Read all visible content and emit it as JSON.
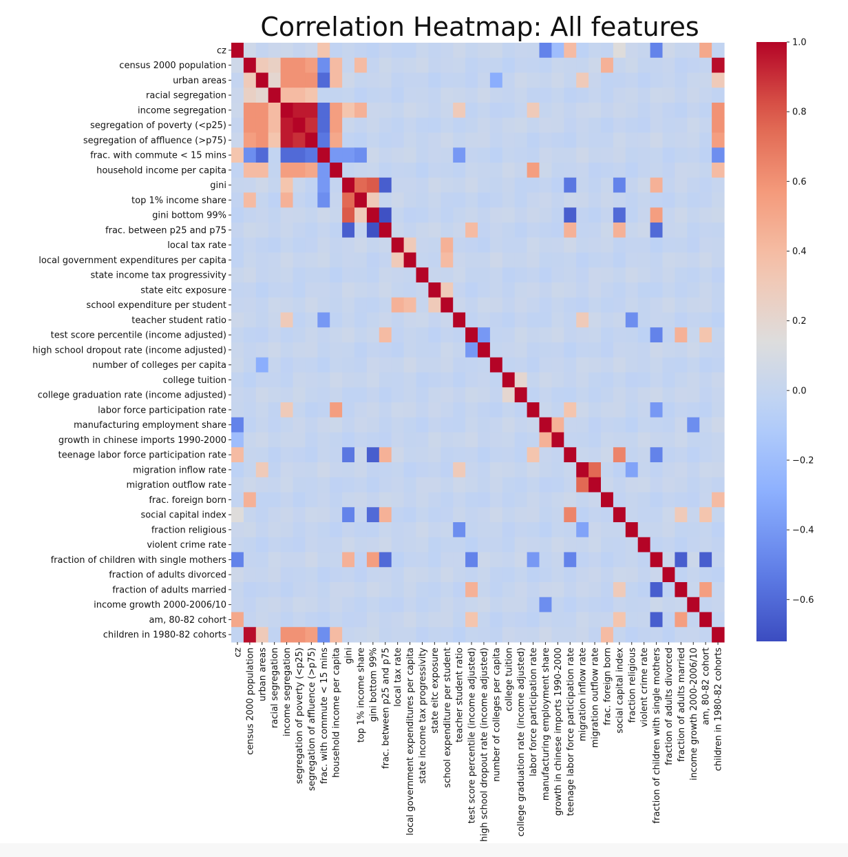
{
  "chart_data": {
    "type": "heatmap",
    "title": "Correlation Heatmap: All features",
    "labels": [
      "cz",
      "census 2000 population",
      "urban areas",
      "racial segregation",
      "income segregation",
      "segregation of poverty (<p25)",
      "segregation of affluence (>p75)",
      "frac. with commute < 15 mins",
      "household income per capita",
      "gini",
      "top 1% income share",
      "gini bottom 99%",
      "frac. between p25 and p75",
      "local tax rate",
      "local government expenditures per capita",
      "state income tax progressivity",
      "state eitc exposure",
      "school expenditure per student",
      "teacher student ratio",
      "test score percentile (income adjusted)",
      "high school dropout rate (income adjusted)",
      "number of colleges per capita",
      "college tuition",
      "college graduation rate (income adjusted)",
      "labor force participation rate",
      "manufacturing employment share",
      "growth in chinese imports 1990-2000",
      "teenage labor force participation rate",
      "migration inflow rate",
      "migration outflow rate",
      "frac. foreign born",
      "social capital index",
      "fraction religious",
      "violent crime rate",
      "fraction of children with single mothers",
      "fraction of adults divorced",
      "fraction of adults married",
      "income growth 2000-2006/10",
      "am, 80-82 cohort",
      "children in 1980-82 cohorts"
    ],
    "colorbar": {
      "min": -0.72,
      "max": 1.0,
      "ticks": [
        1.0,
        0.8,
        0.6,
        0.4,
        0.2,
        0.0,
        -0.2,
        -0.4,
        -0.6
      ],
      "tick_labels": [
        "1.0",
        "0.8",
        "0.6",
        "0.4",
        "0.2",
        "0.0",
        "−0.2",
        "−0.4",
        "−0.6"
      ],
      "colormap": "coolwarm"
    },
    "correlations": [
      [
        "cz",
        "census 2000 population",
        0.05
      ],
      [
        "cz",
        "frac. with commute < 15 mins",
        0.35
      ],
      [
        "cz",
        "manufacturing employment share",
        -0.5
      ],
      [
        "cz",
        "growth in chinese imports 1990-2000",
        -0.2
      ],
      [
        "cz",
        "teenage labor force participation rate",
        0.4
      ],
      [
        "cz",
        "fraction of children with single mothers",
        -0.5
      ],
      [
        "cz",
        "am, 80-82 cohort",
        0.5
      ],
      [
        "cz",
        "social capital index",
        0.15
      ],
      [
        "census 2000 population",
        "urban areas",
        0.3
      ],
      [
        "census 2000 population",
        "racial segregation",
        0.25
      ],
      [
        "census 2000 population",
        "income segregation",
        0.6
      ],
      [
        "census 2000 population",
        "segregation of poverty (<p25)",
        0.6
      ],
      [
        "census 2000 population",
        "segregation of affluence (>p75)",
        0.55
      ],
      [
        "census 2000 population",
        "frac. with commute < 15 mins",
        -0.45
      ],
      [
        "census 2000 population",
        "household income per capita",
        0.4
      ],
      [
        "census 2000 population",
        "top 1% income share",
        0.4
      ],
      [
        "census 2000 population",
        "frac. foreign born",
        0.45
      ],
      [
        "census 2000 population",
        "children in 1980-82 cohorts",
        0.98
      ],
      [
        "urban areas",
        "racial segregation",
        0.2
      ],
      [
        "urban areas",
        "income segregation",
        0.6
      ],
      [
        "urban areas",
        "segregation of poverty (<p25)",
        0.6
      ],
      [
        "urban areas",
        "segregation of affluence (>p75)",
        0.6
      ],
      [
        "urban areas",
        "frac. with commute < 15 mins",
        -0.6
      ],
      [
        "urban areas",
        "household income per capita",
        0.4
      ],
      [
        "urban areas",
        "number of colleges per capita",
        -0.3
      ],
      [
        "urban areas",
        "migration inflow rate",
        0.3
      ],
      [
        "urban areas",
        "children in 1980-82 cohorts",
        0.3
      ],
      [
        "racial segregation",
        "income segregation",
        0.4
      ],
      [
        "racial segregation",
        "segregation of poverty (<p25)",
        0.4
      ],
      [
        "racial segregation",
        "segregation of affluence (>p75)",
        0.35
      ],
      [
        "income segregation",
        "segregation of poverty (<p25)",
        0.95
      ],
      [
        "income segregation",
        "segregation of affluence (>p75)",
        0.95
      ],
      [
        "income segregation",
        "frac. with commute < 15 mins",
        -0.6
      ],
      [
        "income segregation",
        "household income per capita",
        0.55
      ],
      [
        "income segregation",
        "gini",
        0.35
      ],
      [
        "income segregation",
        "top 1% income share",
        0.45
      ],
      [
        "income segregation",
        "teacher student ratio",
        0.3
      ],
      [
        "income segregation",
        "labor force participation rate",
        0.3
      ],
      [
        "income segregation",
        "children in 1980-82 cohorts",
        0.6
      ],
      [
        "segregation of poverty (<p25)",
        "segregation of affluence (>p75)",
        0.9
      ],
      [
        "segregation of poverty (<p25)",
        "frac. with commute < 15 mins",
        -0.6
      ],
      [
        "segregation of poverty (<p25)",
        "household income per capita",
        0.55
      ],
      [
        "segregation of poverty (<p25)",
        "children in 1980-82 cohorts",
        0.6
      ],
      [
        "segregation of affluence (>p75)",
        "frac. with commute < 15 mins",
        -0.55
      ],
      [
        "segregation of affluence (>p75)",
        "household income per capita",
        0.5
      ],
      [
        "segregation of affluence (>p75)",
        "children in 1980-82 cohorts",
        0.55
      ],
      [
        "frac. with commute < 15 mins",
        "household income per capita",
        -0.4
      ],
      [
        "frac. with commute < 15 mins",
        "gini",
        -0.4
      ],
      [
        "frac. with commute < 15 mins",
        "top 1% income share",
        -0.45
      ],
      [
        "frac. with commute < 15 mins",
        "teacher student ratio",
        -0.4
      ],
      [
        "frac. with commute < 15 mins",
        "children in 1980-82 cohorts",
        -0.45
      ],
      [
        "household income per capita",
        "labor force participation rate",
        0.55
      ],
      [
        "household income per capita",
        "children in 1980-82 cohorts",
        0.4
      ],
      [
        "gini",
        "top 1% income share",
        0.75
      ],
      [
        "gini",
        "gini bottom 99%",
        0.8
      ],
      [
        "gini",
        "frac. between p25 and p75",
        -0.65
      ],
      [
        "gini",
        "teenage labor force participation rate",
        -0.55
      ],
      [
        "gini",
        "social capital index",
        -0.5
      ],
      [
        "gini",
        "fraction of children with single mothers",
        0.45
      ],
      [
        "top 1% income share",
        "gini bottom 99%",
        0.3
      ],
      [
        "gini bottom 99%",
        "frac. between p25 and p75",
        -0.7
      ],
      [
        "gini bottom 99%",
        "teenage labor force participation rate",
        -0.65
      ],
      [
        "gini bottom 99%",
        "social capital index",
        -0.6
      ],
      [
        "gini bottom 99%",
        "fraction of children with single mothers",
        0.55
      ],
      [
        "frac. between p25 and p75",
        "teenage labor force participation rate",
        0.45
      ],
      [
        "frac. between p25 and p75",
        "social capital index",
        0.45
      ],
      [
        "frac. between p25 and p75",
        "fraction of children with single mothers",
        -0.6
      ],
      [
        "frac. between p25 and p75",
        "test score percentile (income adjusted)",
        0.4
      ],
      [
        "local tax rate",
        "local government expenditures per capita",
        0.3
      ],
      [
        "local tax rate",
        "school expenditure per student",
        0.45
      ],
      [
        "local government expenditures per capita",
        "school expenditure per student",
        0.4
      ],
      [
        "state eitc exposure",
        "school expenditure per student",
        0.3
      ],
      [
        "teacher student ratio",
        "migration inflow rate",
        0.3
      ],
      [
        "teacher student ratio",
        "fraction religious",
        -0.45
      ],
      [
        "test score percentile (income adjusted)",
        "high school dropout rate (income adjusted)",
        -0.4
      ],
      [
        "test score percentile (income adjusted)",
        "fraction of children with single mothers",
        -0.5
      ],
      [
        "test score percentile (income adjusted)",
        "fraction of adults married",
        0.45
      ],
      [
        "test score percentile (income adjusted)",
        "am, 80-82 cohort",
        0.35
      ],
      [
        "college tuition",
        "college graduation rate (income adjusted)",
        0.2
      ],
      [
        "labor force participation rate",
        "teenage labor force participation rate",
        0.35
      ],
      [
        "labor force participation rate",
        "fraction of children with single mothers",
        -0.4
      ],
      [
        "manufacturing employment share",
        "growth in chinese imports 1990-2000",
        0.45
      ],
      [
        "manufacturing employment share",
        "income growth 2000-2006/10",
        -0.45
      ],
      [
        "teenage labor force participation rate",
        "social capital index",
        0.65
      ],
      [
        "teenage labor force participation rate",
        "fraction of children with single mothers",
        -0.5
      ],
      [
        "migration inflow rate",
        "migration outflow rate",
        0.75
      ],
      [
        "migration inflow rate",
        "fraction religious",
        -0.35
      ],
      [
        "frac. foreign born",
        "children in 1980-82 cohorts",
        0.4
      ],
      [
        "social capital index",
        "fraction of adults married",
        0.3
      ],
      [
        "social capital index",
        "am, 80-82 cohort",
        0.35
      ],
      [
        "fraction of children with single mothers",
        "fraction of adults married",
        -0.65
      ],
      [
        "fraction of children with single mothers",
        "am, 80-82 cohort",
        -0.65
      ],
      [
        "fraction of adults married",
        "am, 80-82 cohort",
        0.55
      ]
    ]
  }
}
